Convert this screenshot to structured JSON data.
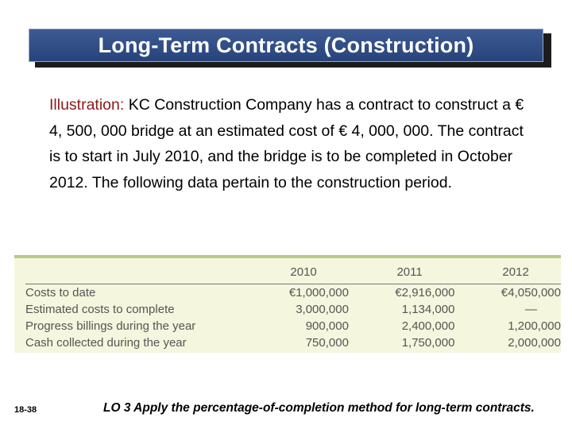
{
  "slide": {
    "title": "Long-Term Contracts (Construction)",
    "illustration_label": "Illustration:",
    "illustration_text": " KC Construction Company has a contract to construct a € 4, 500, 000 bridge at an estimated cost of € 4, 000, 000. The contract is to start in July 2010, and the bridge is to be completed in October 2012. The following data pertain to the construction period.",
    "table": {
      "columns": [
        "2010",
        "2011",
        "2012"
      ],
      "rows": [
        {
          "label": "Costs to date",
          "values": [
            "€1,000,000",
            "€2,916,000",
            "€4,050,000"
          ]
        },
        {
          "label": "Estimated costs to complete",
          "values": [
            "3,000,000",
            "1,134,000",
            "—"
          ]
        },
        {
          "label": "Progress billings during the year",
          "values": [
            "900,000",
            "2,400,000",
            "1,200,000"
          ]
        },
        {
          "label": "Cash collected during the year",
          "values": [
            "750,000",
            "1,750,000",
            "2,000,000"
          ]
        }
      ]
    },
    "slide_number": "18-38",
    "footer": "LO 3  Apply the percentage-of-completion method for long-term contracts."
  }
}
